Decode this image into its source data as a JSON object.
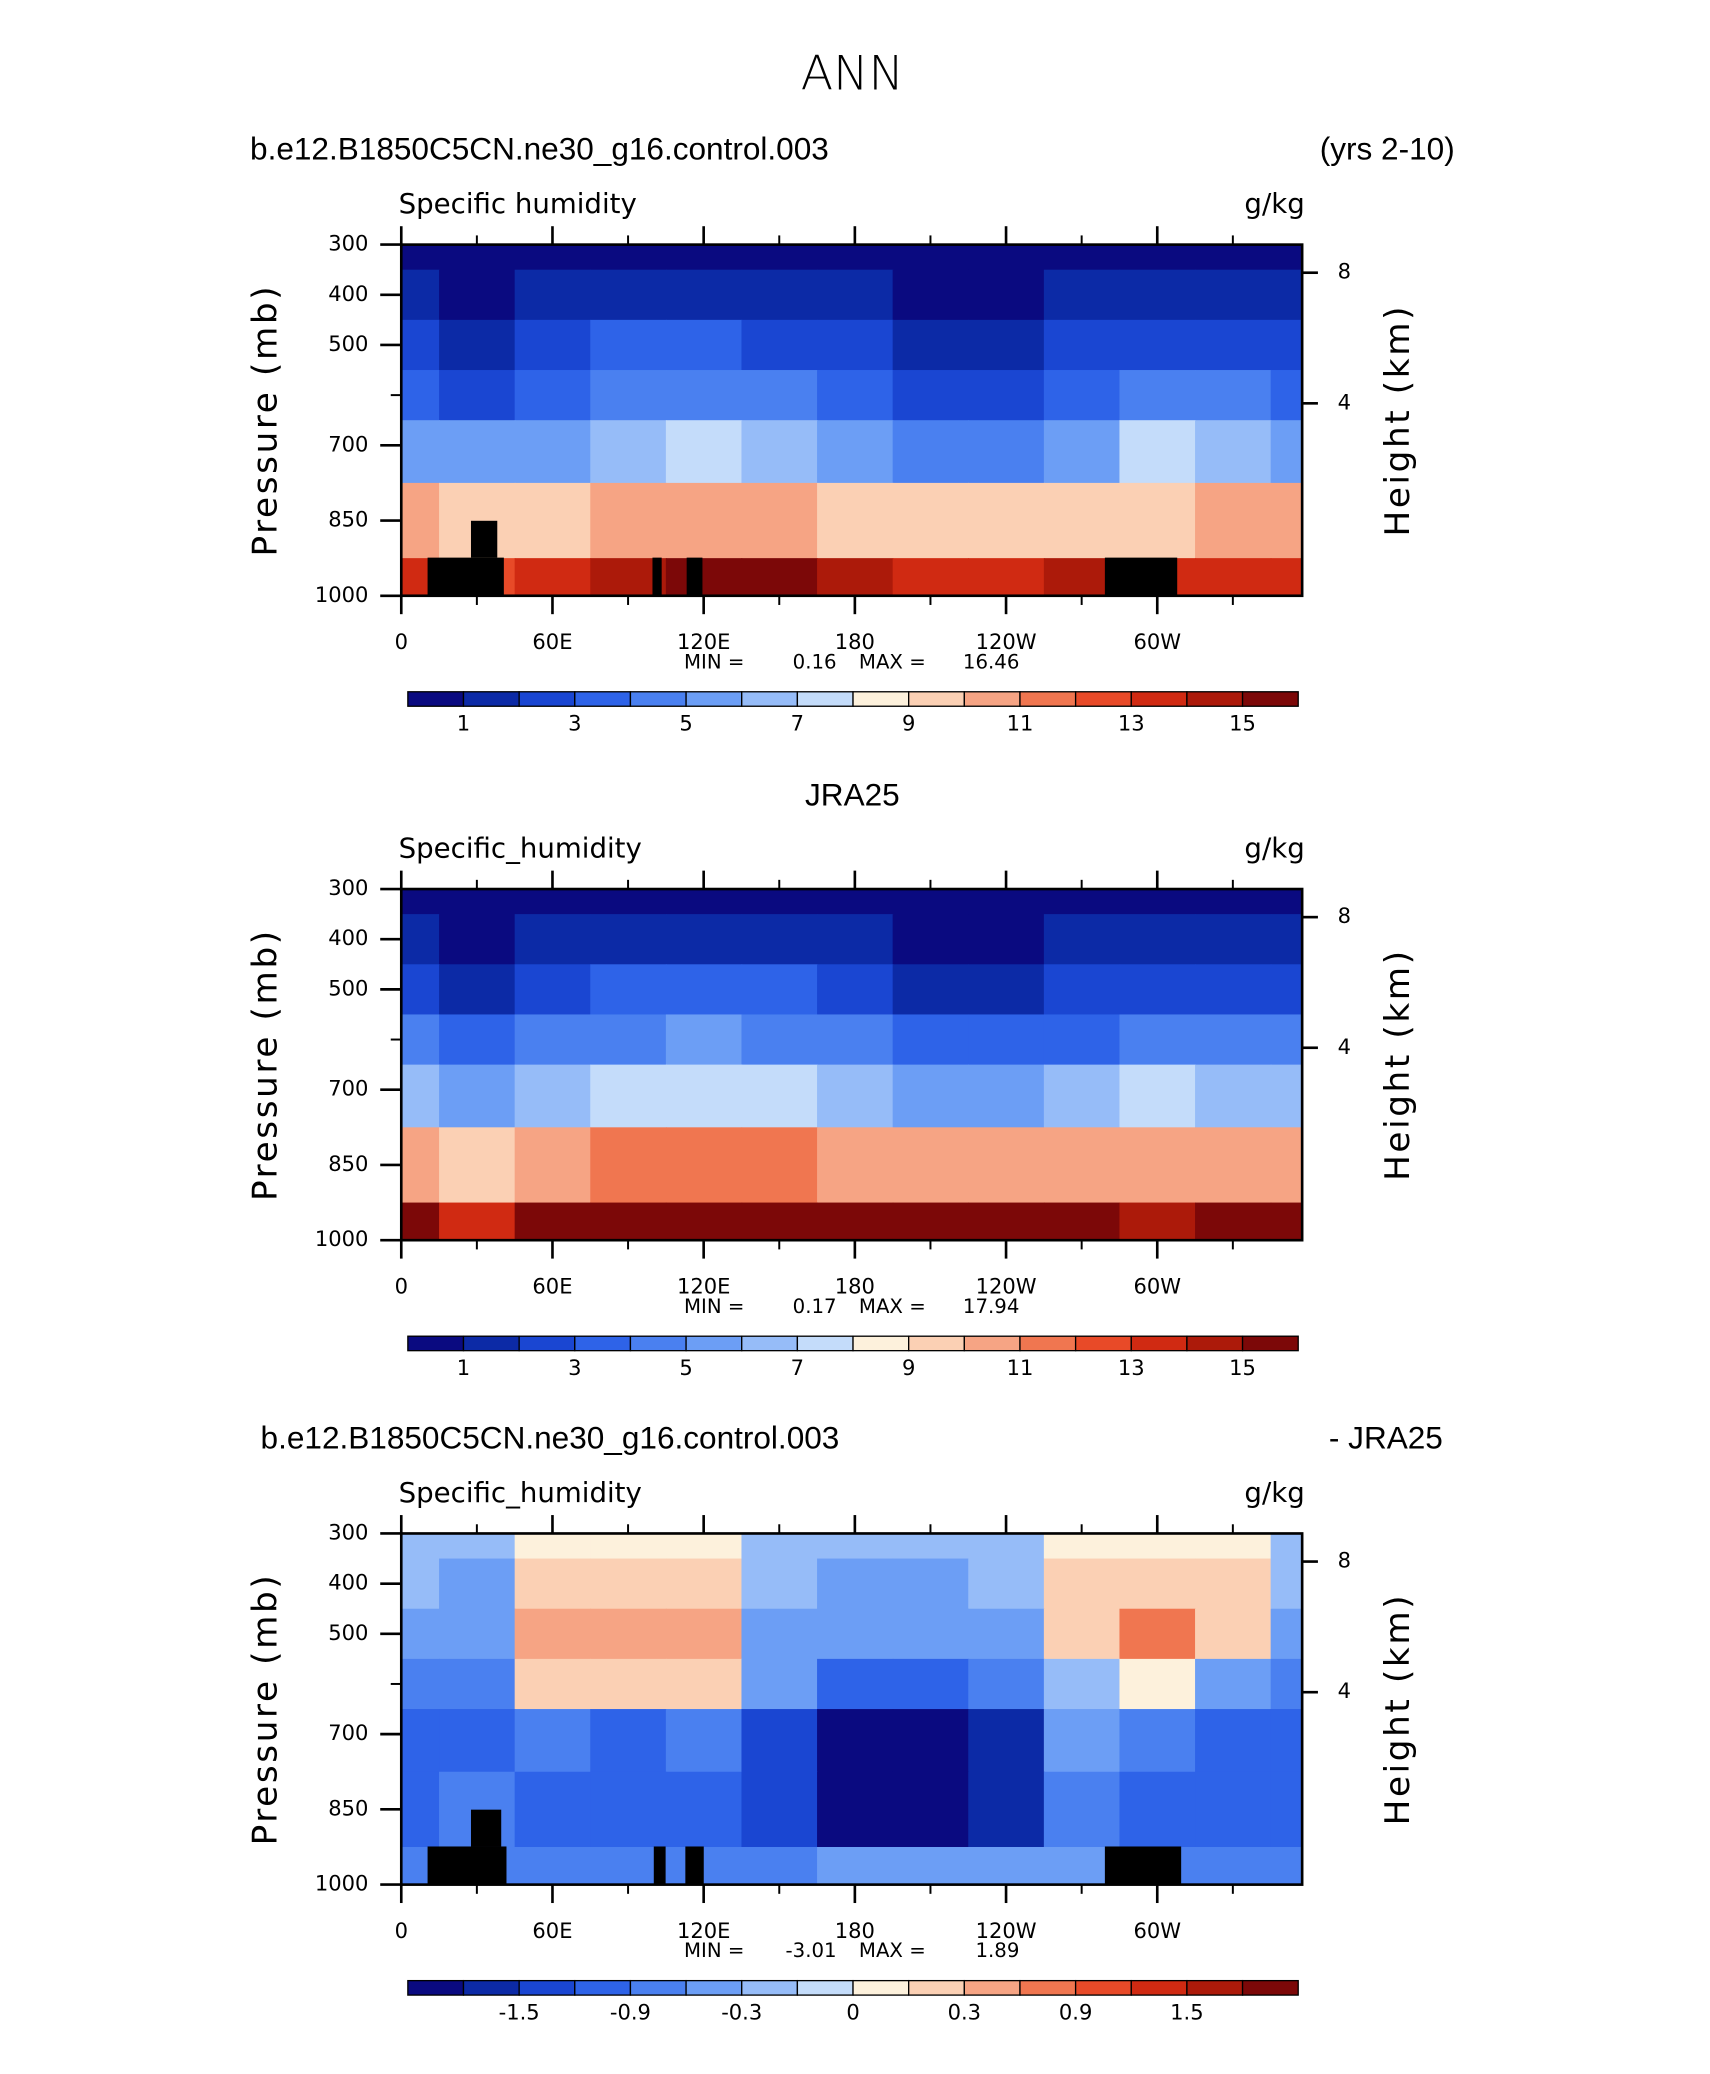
{
  "title": "ANN",
  "chart_data": [
    {
      "type": "contour",
      "title_left": "b.e12.B1850C5CN.ne30_g16.control.003",
      "title_right": "(yrs 2-10)",
      "subtitle_left": "Specific humidity",
      "units": "g/kg",
      "ylabel": "Pressure (mb)",
      "y2label": "Height (km)",
      "x": [
        0,
        30,
        60,
        90,
        120,
        150,
        180,
        210,
        240,
        270,
        300,
        330,
        360
      ],
      "y": [
        300,
        400,
        500,
        600,
        700,
        850,
        1000
      ],
      "z": [
        [
          0.4,
          0.5,
          0.5,
          0.6,
          0.7,
          0.6,
          0.4,
          0.3,
          0.3,
          0.4,
          0.6,
          0.5,
          0.4
        ],
        [
          1.2,
          1.0,
          1.3,
          1.6,
          1.7,
          1.5,
          1.1,
          0.8,
          0.8,
          1.2,
          1.6,
          1.4,
          1.2
        ],
        [
          2.4,
          1.8,
          2.6,
          3.2,
          3.4,
          3.0,
          2.4,
          1.8,
          1.7,
          2.4,
          3.0,
          2.7,
          2.4
        ],
        [
          3.8,
          2.8,
          4.0,
          4.8,
          5.0,
          4.6,
          3.8,
          3.0,
          2.9,
          3.8,
          4.6,
          4.2,
          3.8
        ],
        [
          6.0,
          5.5,
          6.0,
          7.0,
          7.2,
          6.6,
          5.6,
          5.0,
          5.0,
          6.0,
          7.5,
          6.4,
          6.0
        ],
        [
          10.5,
          9.5,
          10.0,
          10.6,
          10.8,
          10.4,
          10.0,
          9.5,
          9.6,
          10.0,
          10.0,
          10.2,
          10.5
        ],
        [
          14.0,
          13.0,
          14.0,
          15.0,
          15.5,
          15.2,
          14.5,
          14.0,
          14.0,
          14.5,
          13.5,
          14.0,
          14.0
        ]
      ],
      "xlim": [
        0,
        357.5
      ],
      "ylim": [
        1000,
        300
      ],
      "xticks": [
        0,
        {
          "value": 60,
          "label": "60E"
        },
        {
          "value": 120,
          "label": "120E"
        },
        {
          "value": 180,
          "label": "180"
        },
        {
          "value": 240,
          "label": "120W"
        },
        {
          "value": 300,
          "label": "60W"
        }
      ],
      "xminorticks": [
        30,
        90,
        150,
        210,
        270,
        330
      ],
      "yticks": [
        300,
        400,
        500,
        700,
        850,
        1000
      ],
      "yminorticks": [
        600
      ],
      "y2ticks": [
        8,
        4
      ],
      "min_label": "MIN =",
      "min": 0.16,
      "max_label": "MAX =",
      "max": 16.46,
      "colorbar": {
        "levels": [
          1,
          2,
          3,
          4,
          5,
          6,
          7,
          8,
          9,
          10,
          11,
          12,
          13,
          14,
          15
        ],
        "ticks": [
          1,
          3,
          5,
          7,
          9,
          11,
          13,
          15
        ],
        "colors": [
          "#0a0a80",
          "#0c2aa6",
          "#1a46d2",
          "#2e63e8",
          "#4a80f0",
          "#6c9ef5",
          "#96bcf8",
          "#c4dcfa",
          "#fdf1dc",
          "#fbd0b4",
          "#f6a484",
          "#f07650",
          "#e84a28",
          "#d02a12",
          "#ac1a0a",
          "#7c0808"
        ]
      }
    },
    {
      "type": "contour",
      "title": "JRA25",
      "subtitle_left": "Specific_humidity",
      "units": "g/kg",
      "ylabel": "Pressure (mb)",
      "y2label": "Height (km)",
      "x": [
        0,
        30,
        60,
        90,
        120,
        150,
        180,
        210,
        240,
        270,
        300,
        330,
        360
      ],
      "y": [
        300,
        400,
        500,
        600,
        700,
        850,
        1000
      ],
      "z": [
        [
          0.4,
          0.5,
          0.5,
          0.6,
          0.7,
          0.6,
          0.4,
          0.3,
          0.3,
          0.4,
          0.5,
          0.5,
          0.4
        ],
        [
          1.2,
          1.0,
          1.4,
          1.6,
          1.7,
          1.6,
          1.2,
          0.9,
          0.9,
          1.2,
          1.5,
          1.4,
          1.2
        ],
        [
          2.6,
          2.0,
          2.8,
          3.2,
          3.4,
          3.2,
          2.6,
          2.0,
          1.9,
          2.4,
          3.0,
          2.8,
          2.6
        ],
        [
          4.2,
          3.4,
          4.4,
          5.0,
          5.2,
          5.0,
          4.2,
          3.4,
          3.3,
          4.0,
          4.6,
          4.4,
          4.2
        ],
        [
          6.8,
          6.0,
          6.8,
          7.4,
          7.6,
          7.4,
          6.8,
          6.0,
          6.0,
          6.6,
          7.4,
          7.0,
          6.8
        ],
        [
          11.0,
          10.0,
          11.0,
          11.5,
          11.8,
          11.5,
          11.0,
          10.5,
          10.5,
          11.0,
          11.0,
          11.0,
          11.0
        ],
        [
          15.5,
          14.0,
          15.5,
          16.5,
          17.0,
          16.8,
          16.0,
          15.5,
          15.5,
          16.0,
          15.0,
          15.5,
          15.5
        ]
      ],
      "xlim": [
        0,
        357.5
      ],
      "ylim": [
        1000,
        300
      ],
      "xticks": [
        0,
        {
          "value": 60,
          "label": "60E"
        },
        {
          "value": 120,
          "label": "120E"
        },
        {
          "value": 180,
          "label": "180"
        },
        {
          "value": 240,
          "label": "120W"
        },
        {
          "value": 300,
          "label": "60W"
        }
      ],
      "xminorticks": [
        30,
        90,
        150,
        210,
        270,
        330
      ],
      "yticks": [
        300,
        400,
        500,
        700,
        850,
        1000
      ],
      "yminorticks": [
        600
      ],
      "y2ticks": [
        8,
        4
      ],
      "min_label": "MIN =",
      "min": 0.17,
      "max_label": "MAX =",
      "max": 17.94,
      "colorbar": {
        "levels": [
          1,
          2,
          3,
          4,
          5,
          6,
          7,
          8,
          9,
          10,
          11,
          12,
          13,
          14,
          15
        ],
        "ticks": [
          1,
          3,
          5,
          7,
          9,
          11,
          13,
          15
        ],
        "colors": [
          "#0a0a80",
          "#0c2aa6",
          "#1a46d2",
          "#2e63e8",
          "#4a80f0",
          "#6c9ef5",
          "#96bcf8",
          "#c4dcfa",
          "#fdf1dc",
          "#fbd0b4",
          "#f6a484",
          "#f07650",
          "#e84a28",
          "#d02a12",
          "#ac1a0a",
          "#7c0808"
        ]
      }
    },
    {
      "type": "contour",
      "title_left": "b.e12.B1850C5CN.ne30_g16.control.003",
      "title_right": "- JRA25",
      "subtitle_left": "Specific_humidity",
      "units": "g/kg",
      "ylabel": "Pressure (mb)",
      "y2label": "Height (km)",
      "x": [
        0,
        30,
        60,
        90,
        120,
        150,
        180,
        210,
        240,
        270,
        300,
        330,
        360
      ],
      "y": [
        300,
        400,
        500,
        600,
        700,
        850,
        1000
      ],
      "z": [
        [
          -0.1,
          -0.2,
          0.1,
          0.1,
          0.05,
          -0.1,
          -0.1,
          -0.1,
          -0.1,
          0.05,
          0.1,
          0.05,
          -0.1
        ],
        [
          -0.2,
          -0.3,
          0.3,
          0.3,
          0.3,
          -0.2,
          -0.3,
          -0.3,
          -0.2,
          0.2,
          0.3,
          0.2,
          -0.2
        ],
        [
          -0.3,
          -0.4,
          0.4,
          0.5,
          0.6,
          -0.3,
          -0.5,
          -0.5,
          -0.3,
          0.2,
          0.7,
          0.3,
          -0.3
        ],
        [
          -0.6,
          -0.8,
          0.2,
          0.3,
          0.2,
          -0.5,
          -1.0,
          -1.0,
          -0.6,
          -0.2,
          0.1,
          -0.4,
          -0.6
        ],
        [
          -1.0,
          -1.0,
          -0.8,
          -0.9,
          -0.7,
          -1.2,
          -2.0,
          -2.1,
          -1.5,
          -0.5,
          -0.8,
          -0.9,
          -1.0
        ],
        [
          -1.1,
          -0.6,
          -1.0,
          -1.1,
          -0.9,
          -1.4,
          -2.0,
          -2.1,
          -1.6,
          -0.6,
          -1.0,
          -1.0,
          -1.1
        ],
        [
          -0.8,
          -0.6,
          -0.8,
          -0.7,
          -0.6,
          -0.6,
          -0.4,
          -0.4,
          -0.5,
          -0.3,
          -0.6,
          -0.7,
          -0.8
        ]
      ],
      "xlim": [
        0,
        357.5
      ],
      "ylim": [
        1000,
        300
      ],
      "xticks": [
        0,
        {
          "value": 60,
          "label": "60E"
        },
        {
          "value": 120,
          "label": "120E"
        },
        {
          "value": 180,
          "label": "180"
        },
        {
          "value": 240,
          "label": "120W"
        },
        {
          "value": 300,
          "label": "60W"
        }
      ],
      "xminorticks": [
        30,
        90,
        150,
        210,
        270,
        330
      ],
      "yticks": [
        300,
        400,
        500,
        700,
        850,
        1000
      ],
      "yminorticks": [
        600
      ],
      "y2ticks": [
        8,
        4
      ],
      "min_label": "MIN =",
      "min": -3.01,
      "max_label": "MAX =",
      "max": 1.89,
      "colorbar": {
        "levels": [
          -1.8,
          -1.5,
          -1.2,
          -0.9,
          -0.6,
          -0.3,
          -0.1,
          0,
          0.1,
          0.3,
          0.6,
          0.9,
          1.2,
          1.5,
          1.8
        ],
        "ticks": [
          -1.5,
          -0.9,
          -0.3,
          0,
          0.3,
          0.9,
          1.5
        ],
        "colors": [
          "#0a0a80",
          "#0c2aa6",
          "#1a46d2",
          "#2e63e8",
          "#4a80f0",
          "#6c9ef5",
          "#96bcf8",
          "#c4dcfa",
          "#fdf1dc",
          "#fbd0b4",
          "#f6a484",
          "#f07650",
          "#e84a28",
          "#d02a12",
          "#ac1a0a",
          "#7c0808"
        ]
      }
    }
  ]
}
